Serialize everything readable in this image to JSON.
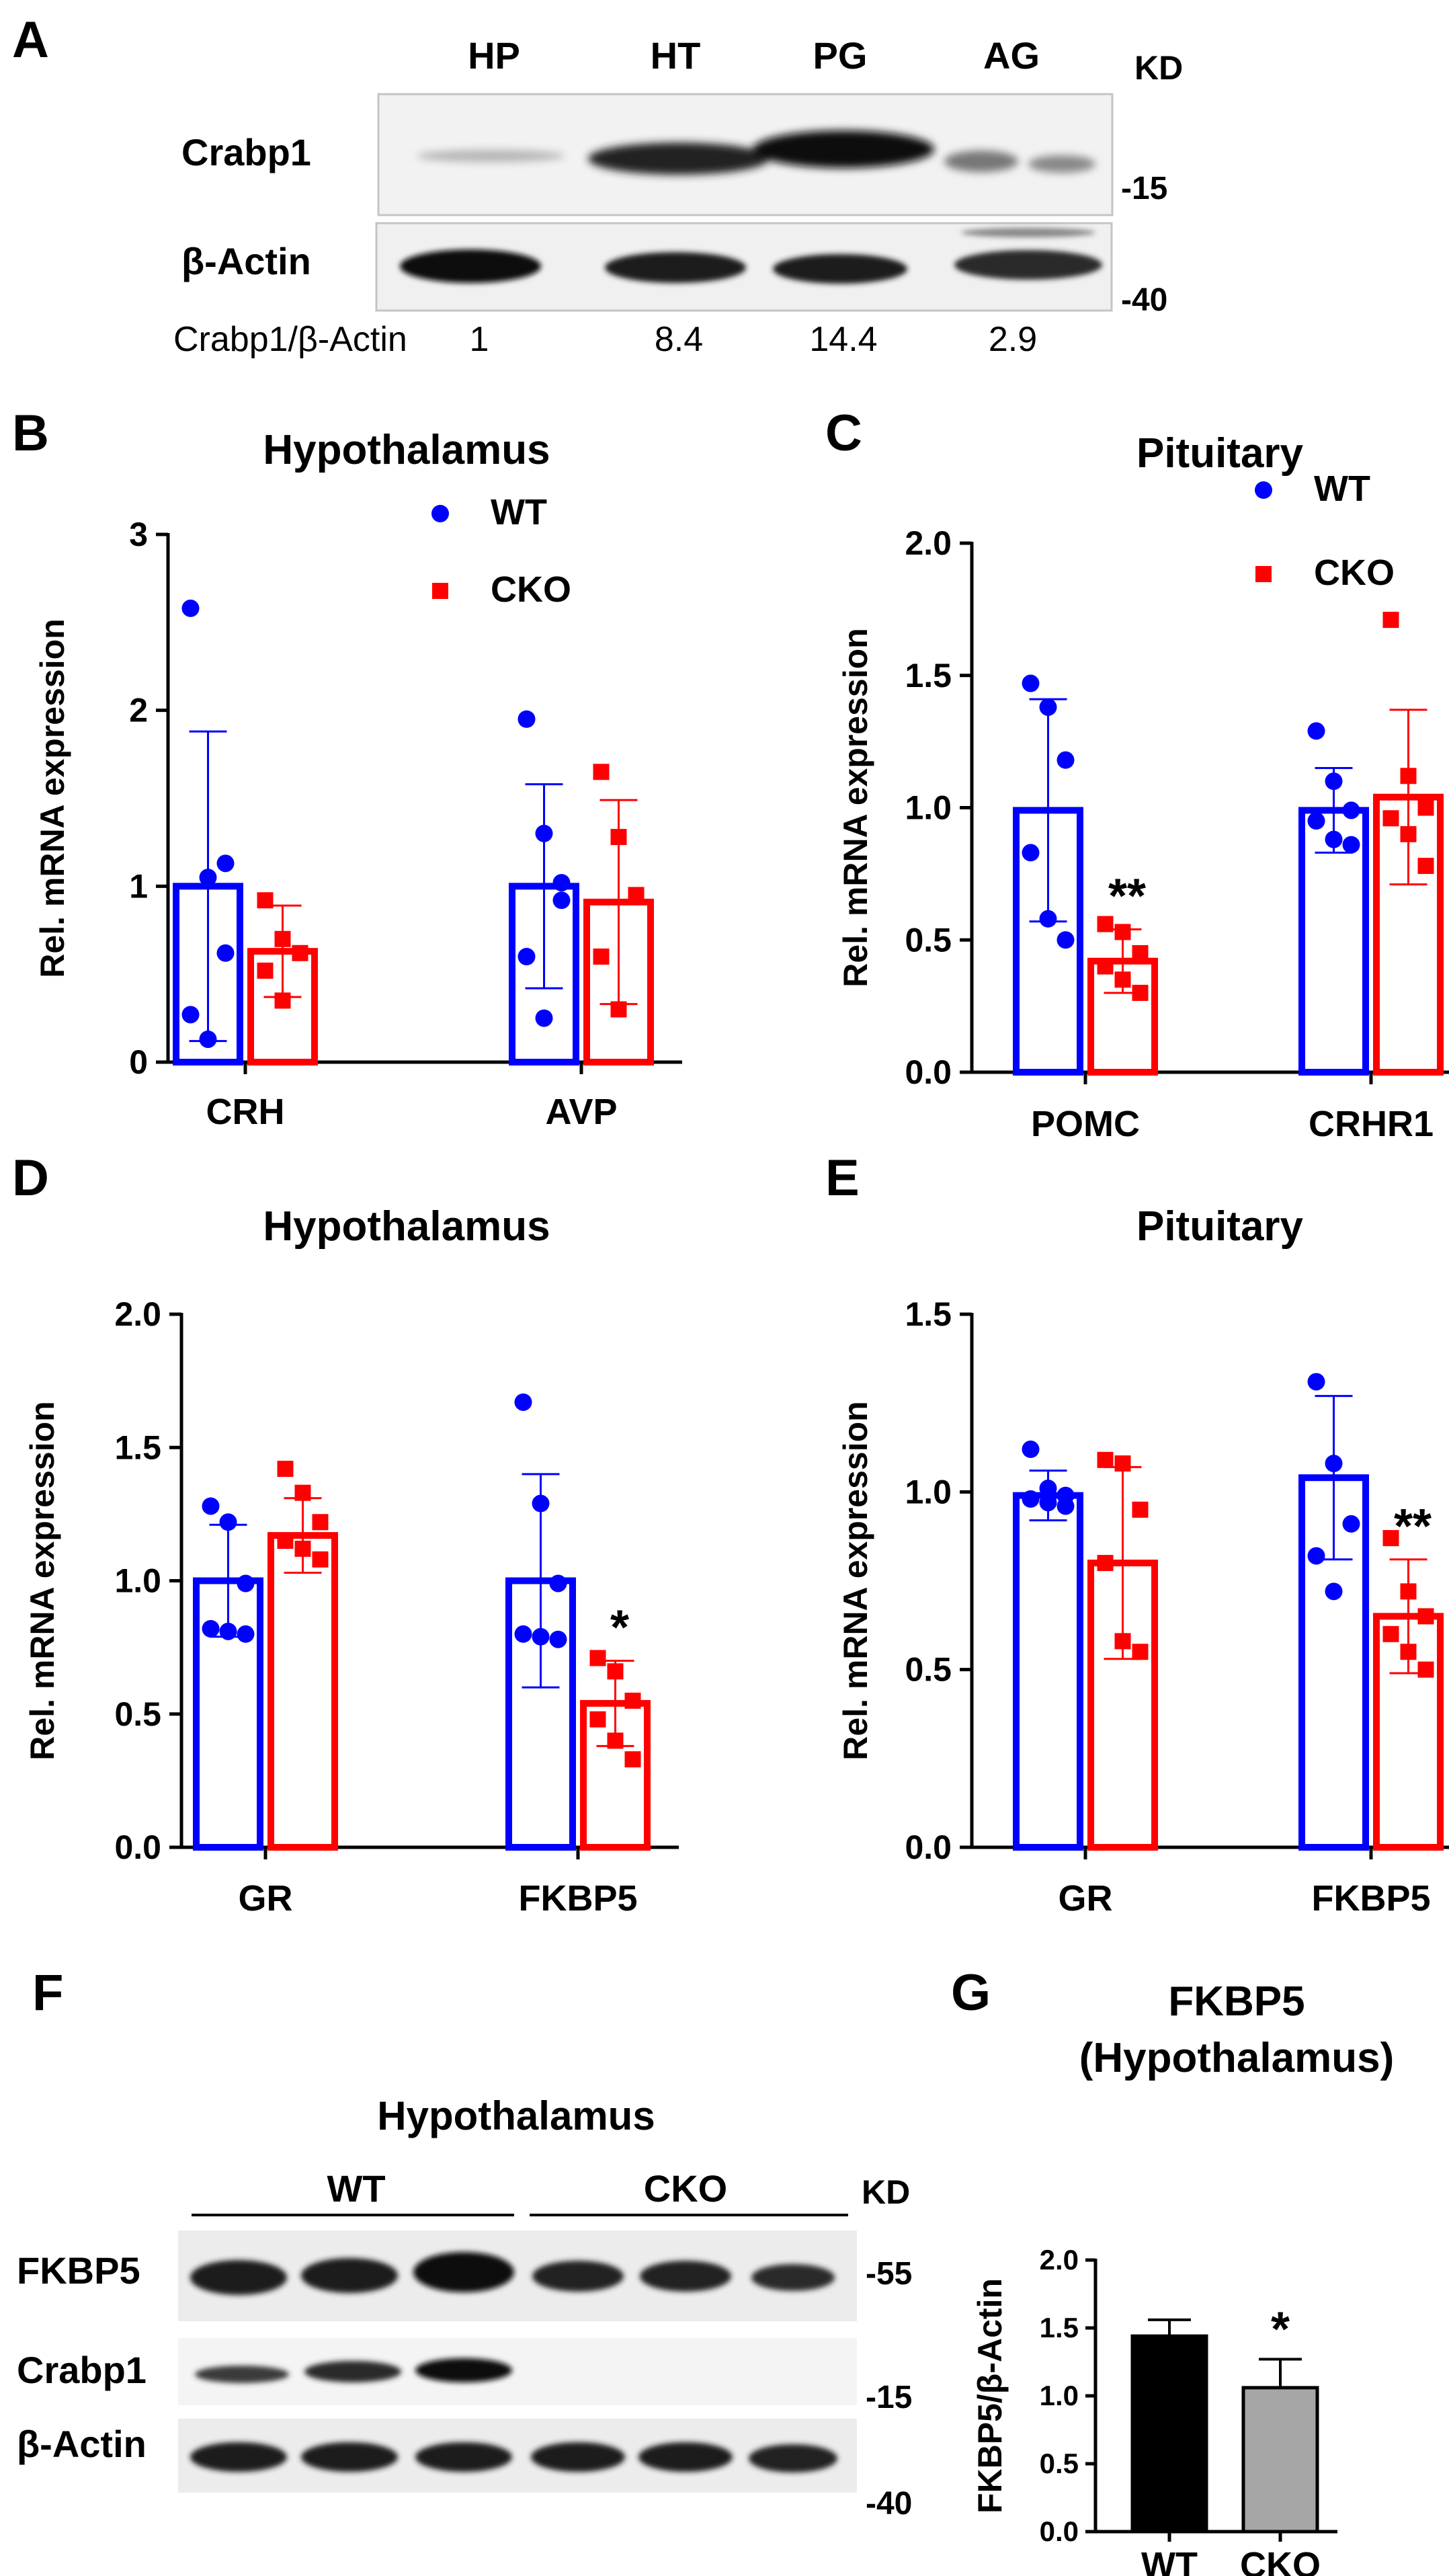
{
  "panel_a": {
    "letter": "A",
    "lanes": [
      "HP",
      "HT",
      "PG",
      "AG"
    ],
    "kd_label": "KD",
    "rows": [
      "Crabp1",
      "β-Actin"
    ],
    "markers": [
      "-15",
      "-40"
    ],
    "ratio_label": "Crabp1/β-Actin",
    "ratios": [
      "1",
      "8.4",
      "14.4",
      "2.9"
    ]
  },
  "panel_f": {
    "letter": "F",
    "title": "Hypothalamus",
    "groups": [
      "WT",
      "CKO"
    ],
    "kd_label": "KD",
    "rows": [
      "FKBP5",
      "Crabp1",
      "β-Actin"
    ],
    "markers": [
      "-55",
      "-15",
      "-40"
    ]
  },
  "colors": {
    "wt": "#0000ff",
    "cko": "#ff0000",
    "wt_bar_g": "#000000",
    "cko_bar_g": "#a6a6a6"
  },
  "chart_data": [
    {
      "panel": "B",
      "type": "bar",
      "title": "Hypothalamus",
      "ylabel": "Rel. mRNA expression",
      "ylim": [
        0,
        3
      ],
      "yticks": [
        0,
        1,
        2,
        3
      ],
      "ytick_labels": [
        "0",
        "1",
        "2",
        "3"
      ],
      "categories": [
        "CRH",
        "AVP"
      ],
      "legend": [
        "WT",
        "CKO"
      ],
      "series": [
        {
          "name": "WT",
          "means": [
            1.0,
            1.0
          ],
          "sds": [
            0.88,
            0.58
          ],
          "points": [
            [
              2.58,
              1.05,
              0.62,
              0.27,
              0.13,
              1.13
            ],
            [
              1.95,
              1.3,
              0.92,
              0.6,
              0.25,
              1.02
            ]
          ]
        },
        {
          "name": "CKO",
          "means": [
            0.63,
            0.91
          ],
          "sds": [
            0.26,
            0.58
          ],
          "points": [
            [
              0.92,
              0.7,
              0.62,
              0.52,
              0.35
            ],
            [
              1.65,
              1.28,
              0.95,
              0.6,
              0.3
            ]
          ]
        }
      ],
      "significance": [
        "",
        ""
      ]
    },
    {
      "panel": "C",
      "type": "bar",
      "title": "Pituitary",
      "ylabel": "Rel. mRNA expression",
      "ylim": [
        0,
        2
      ],
      "yticks": [
        0,
        0.5,
        1,
        1.5,
        2
      ],
      "ytick_labels": [
        "0.0",
        "0.5",
        "1.0",
        "1.5",
        "2.0"
      ],
      "categories": [
        "POMC",
        "CRHR1"
      ],
      "legend": [
        "WT",
        "CKO"
      ],
      "series": [
        {
          "name": "WT",
          "means": [
            0.99,
            0.99
          ],
          "sds": [
            0.42,
            0.16
          ],
          "points": [
            [
              1.47,
              1.38,
              1.18,
              0.83,
              0.58,
              0.5
            ],
            [
              1.29,
              1.1,
              0.99,
              0.95,
              0.88,
              0.86
            ]
          ]
        },
        {
          "name": "CKO",
          "means": [
            0.42,
            1.04
          ],
          "sds": [
            0.12,
            0.33
          ],
          "points": [
            [
              0.56,
              0.53,
              0.45,
              0.4,
              0.35,
              0.3
            ],
            [
              1.71,
              1.12,
              1.0,
              0.96,
              0.9,
              0.78
            ]
          ]
        }
      ],
      "significance": [
        "**",
        ""
      ]
    },
    {
      "panel": "D",
      "type": "bar",
      "title": "Hypothalamus",
      "ylabel": "Rel. mRNA expression",
      "ylim": [
        0,
        2
      ],
      "yticks": [
        0,
        0.5,
        1,
        1.5,
        2
      ],
      "ytick_labels": [
        "0.0",
        "0.5",
        "1.0",
        "1.5",
        "2.0"
      ],
      "categories": [
        "GR",
        "FKBP5"
      ],
      "series": [
        {
          "name": "WT",
          "means": [
            1.0,
            1.0
          ],
          "sds": [
            0.21,
            0.4
          ],
          "points": [
            [
              1.28,
              1.22,
              0.99,
              0.82,
              0.81,
              0.8
            ],
            [
              1.67,
              1.29,
              0.99,
              0.8,
              0.79,
              0.78
            ]
          ]
        },
        {
          "name": "CKO",
          "means": [
            1.17,
            0.54
          ],
          "sds": [
            0.14,
            0.16
          ],
          "points": [
            [
              1.42,
              1.33,
              1.22,
              1.15,
              1.12,
              1.08
            ],
            [
              0.71,
              0.66,
              0.55,
              0.48,
              0.4,
              0.33
            ]
          ]
        }
      ],
      "significance": [
        "",
        "*"
      ]
    },
    {
      "panel": "E",
      "type": "bar",
      "title": "Pituitary",
      "ylabel": "Rel. mRNA expression",
      "ylim": [
        0,
        1.5
      ],
      "yticks": [
        0,
        0.5,
        1,
        1.5
      ],
      "ytick_labels": [
        "0.0",
        "0.5",
        "1.0",
        "1.5"
      ],
      "categories": [
        "GR",
        "FKBP5"
      ],
      "series": [
        {
          "name": "WT",
          "means": [
            0.99,
            1.04
          ],
          "sds": [
            0.07,
            0.23
          ],
          "points": [
            [
              1.12,
              1.01,
              0.99,
              0.98,
              0.97,
              0.96
            ],
            [
              1.31,
              1.08,
              0.91,
              0.82,
              0.72
            ]
          ]
        },
        {
          "name": "CKO",
          "means": [
            0.8,
            0.65
          ],
          "sds": [
            0.27,
            0.16
          ],
          "points": [
            [
              1.09,
              1.08,
              0.95,
              0.8,
              0.58,
              0.55
            ],
            [
              0.87,
              0.72,
              0.65,
              0.6,
              0.55,
              0.5
            ]
          ]
        }
      ],
      "significance": [
        "",
        "**"
      ]
    },
    {
      "panel": "G",
      "type": "bar",
      "title": "FKBP5",
      "subtitle": "(Hypothalamus)",
      "ylabel": "FKBP5/β-Actin",
      "ylim": [
        0,
        2
      ],
      "yticks": [
        0,
        0.5,
        1,
        1.5,
        2
      ],
      "ytick_labels": [
        "0.0",
        "0.5",
        "1.0",
        "1.5",
        "2.0"
      ],
      "categories": [
        "WT",
        "CKO"
      ],
      "values": [
        1.44,
        1.06
      ],
      "errors": [
        0.12,
        0.21
      ],
      "significance": [
        "",
        "*"
      ]
    }
  ]
}
